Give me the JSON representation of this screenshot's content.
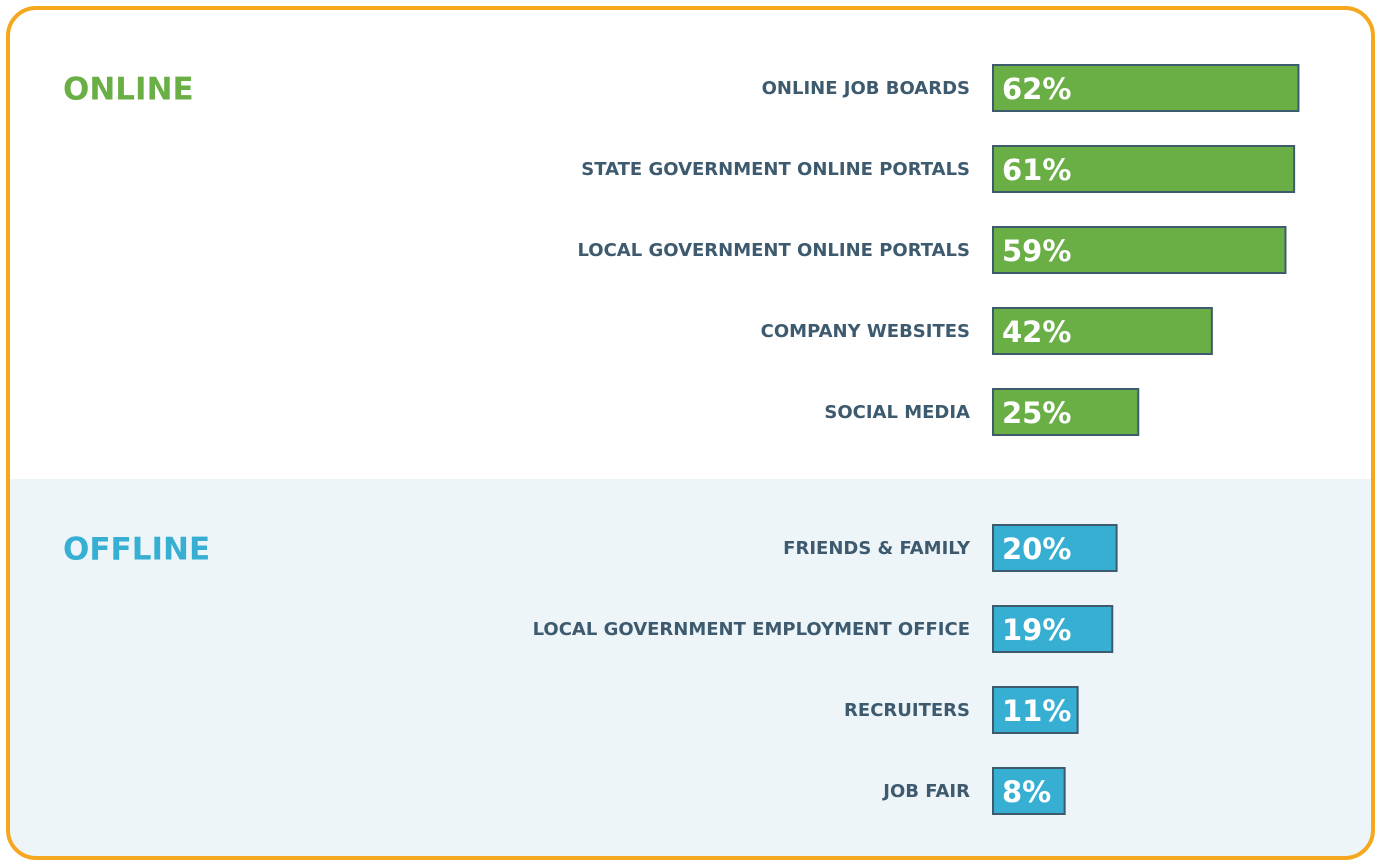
{
  "chart_data": [
    {
      "type": "bar",
      "title": "ONLINE",
      "title_color": "#6aaf45",
      "color": "#6aaf45",
      "categories": [
        "ONLINE JOB BOARDS",
        "STATE GOVERNMENT ONLINE PORTALS",
        "LOCAL GOVERNMENT ONLINE PORTALS",
        "COMPANY WEBSITES",
        "SOCIAL MEDIA"
      ],
      "values": [
        62,
        61,
        59,
        42,
        25
      ],
      "value_labels": [
        "62%",
        "61%",
        "59%",
        "42%",
        "25%"
      ]
    },
    {
      "type": "bar",
      "title": "OFFLINE",
      "title_color": "#36afd2",
      "color": "#36afd2",
      "categories": [
        "FRIENDS & FAMILY",
        "LOCAL GOVERNMENT EMPLOYMENT OFFICE",
        "RECRUITERS",
        "JOB FAIR"
      ],
      "values": [
        20,
        19,
        11,
        8
      ],
      "value_labels": [
        "20%",
        "19%",
        "11%",
        "8%"
      ]
    }
  ]
}
